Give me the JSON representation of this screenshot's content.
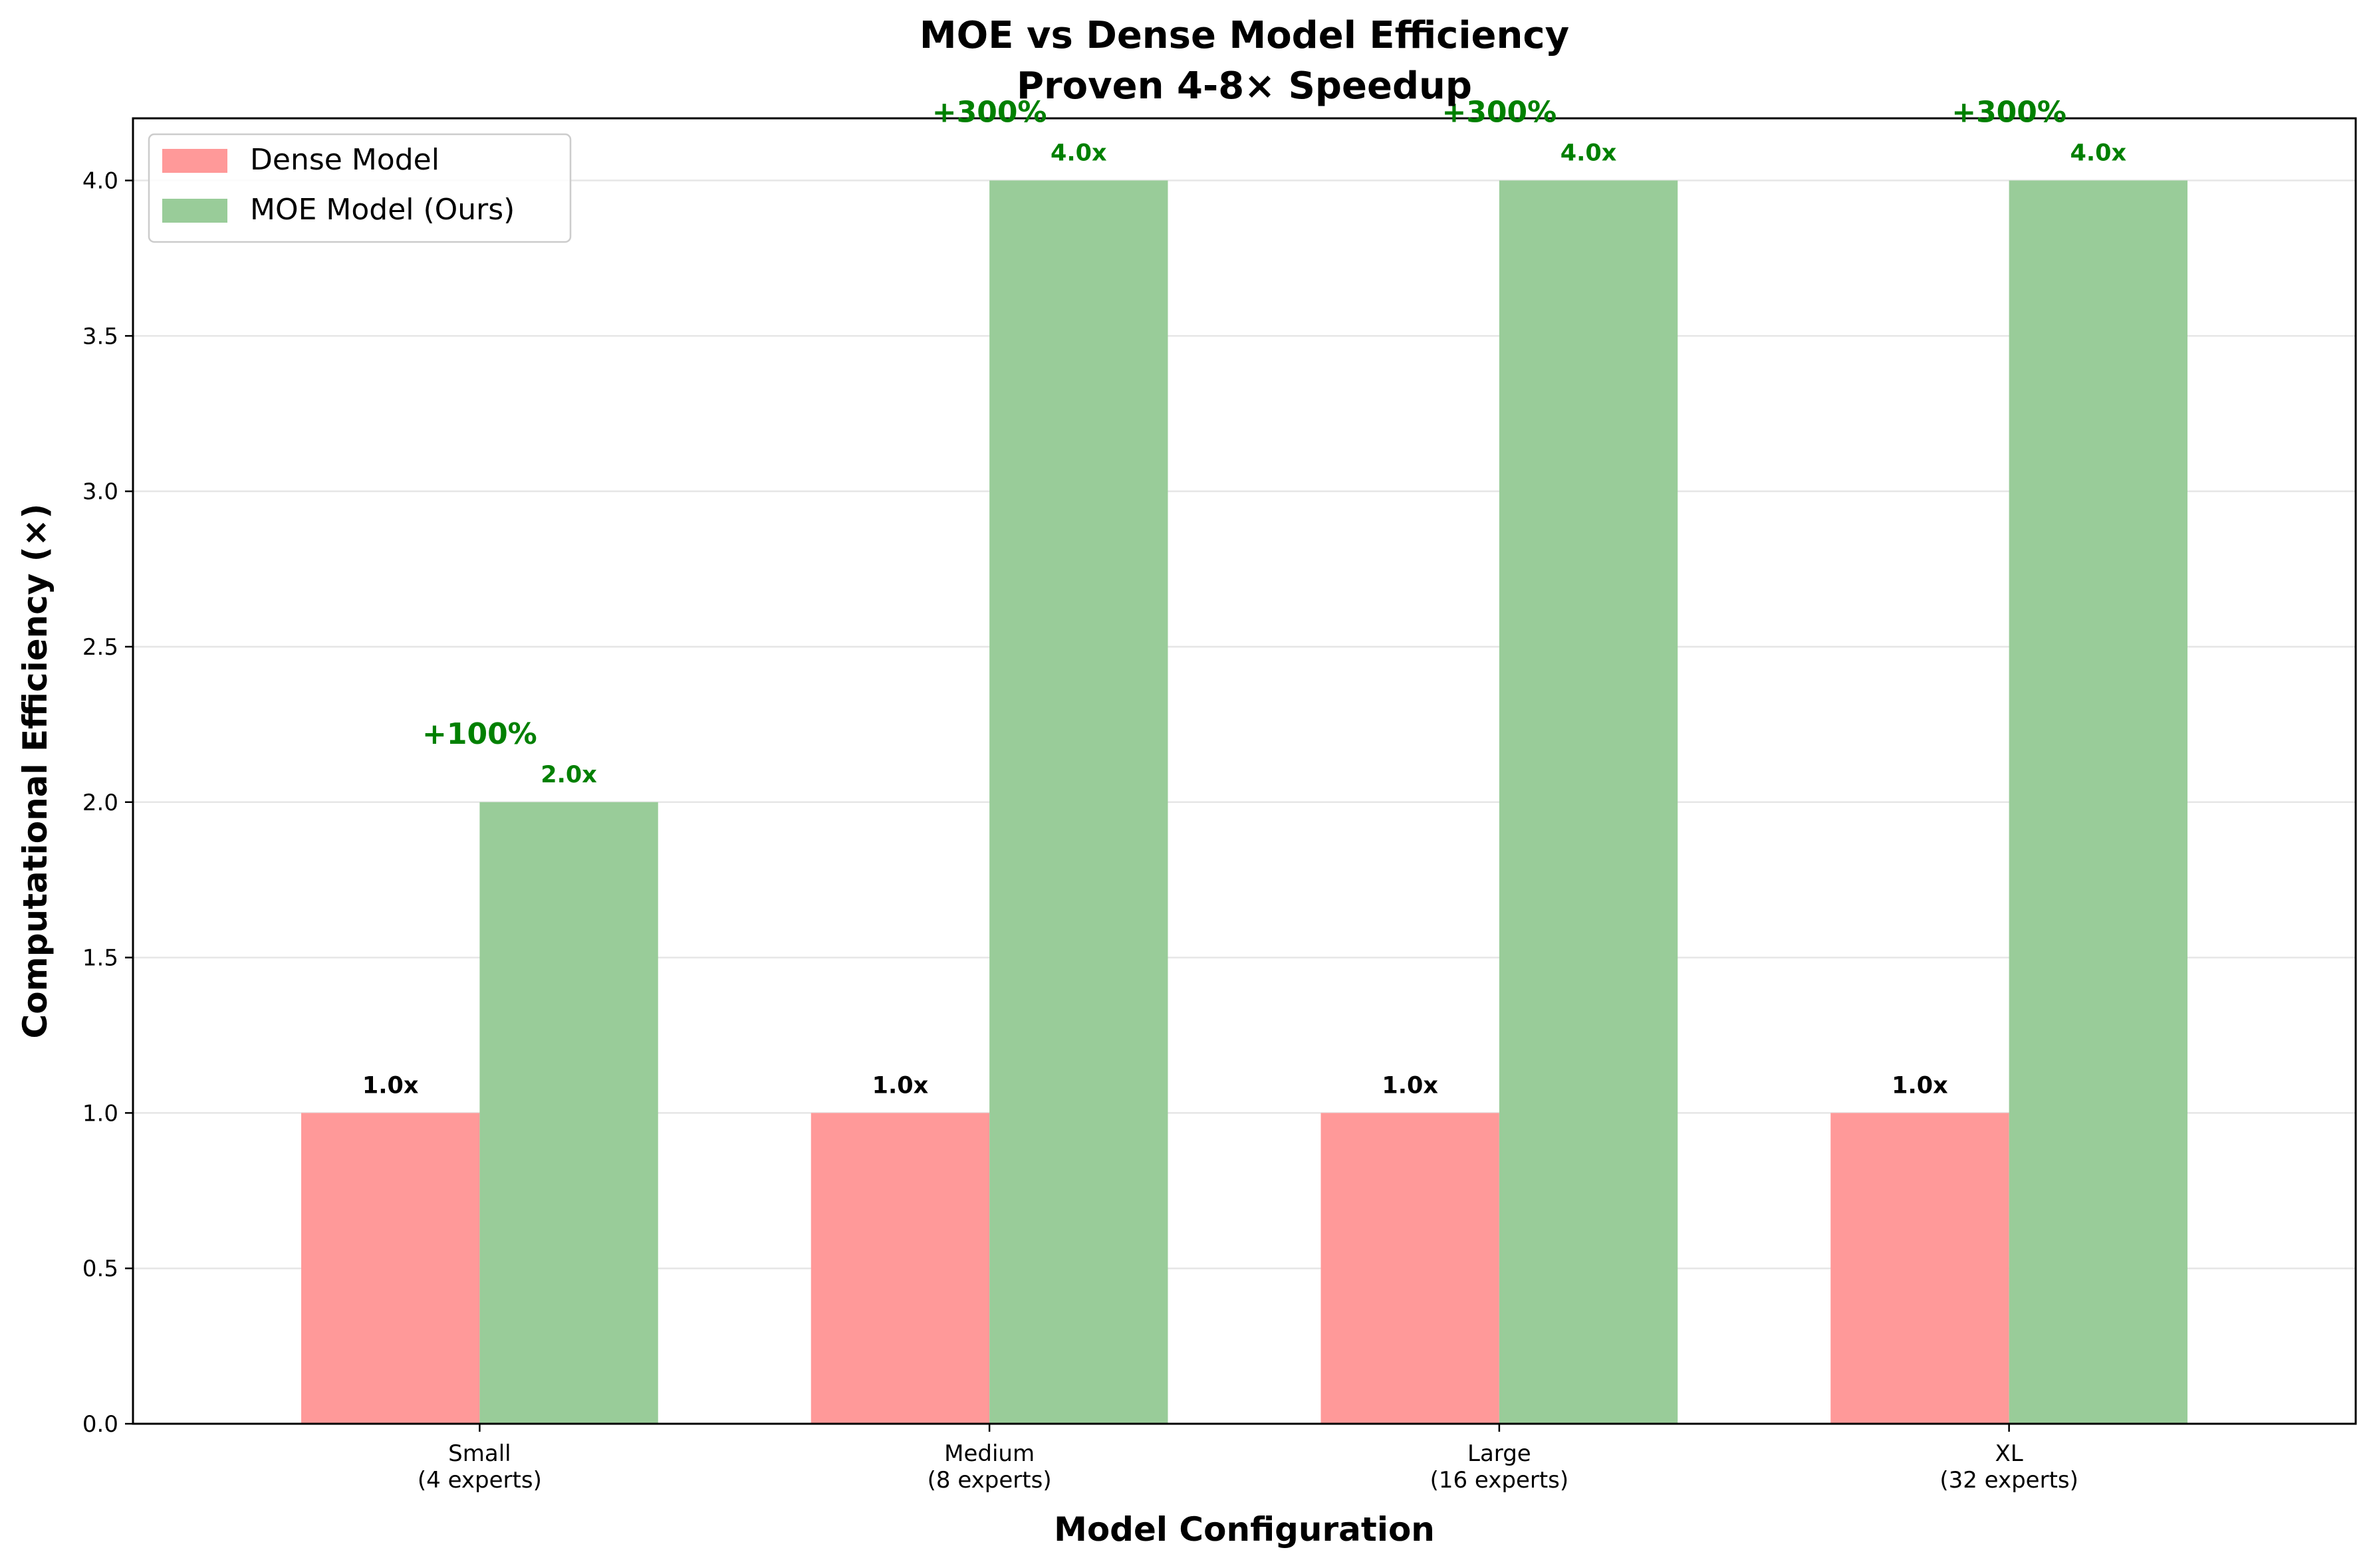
{
  "chart_data": {
    "type": "bar",
    "title": "MOE vs Dense Model Efficiency\nProven 4-8× Speedup",
    "title_lines": [
      "MOE vs Dense Model Efficiency",
      "Proven 4-8× Speedup"
    ],
    "xlabel": "Model Configuration",
    "ylabel": "Computational Efficiency (×)",
    "categories": [
      "Small\n(4 experts)",
      "Medium\n(8 experts)",
      "Large\n(16 experts)",
      "XL\n(32 experts)"
    ],
    "category_lines": [
      [
        "Small",
        "(4 experts)"
      ],
      [
        "Medium",
        "(8 experts)"
      ],
      [
        "Large",
        "(16 experts)"
      ],
      [
        "XL",
        "(32 experts)"
      ]
    ],
    "series": [
      {
        "name": "Dense Model",
        "values": [
          1.0,
          1.0,
          1.0,
          1.0
        ],
        "labels": [
          "1.0x",
          "1.0x",
          "1.0x",
          "1.0x"
        ],
        "color": "#ff9999",
        "label_color": "#000000"
      },
      {
        "name": "MOE Model (Ours)",
        "values": [
          2.0,
          4.0,
          4.0,
          4.0
        ],
        "labels": [
          "2.0x",
          "4.0x",
          "4.0x",
          "4.0x"
        ],
        "color": "#99cc99",
        "label_color": "#008000"
      }
    ],
    "improvements": [
      "+100%",
      "+300%",
      "+300%",
      "+300%"
    ],
    "improvement_color": "#008000",
    "ylim": [
      0,
      4.2
    ],
    "yticks": [
      0.0,
      0.5,
      1.0,
      1.5,
      2.0,
      2.5,
      3.0,
      3.5,
      4.0
    ],
    "ytick_labels": [
      "0.0",
      "0.5",
      "1.0",
      "1.5",
      "2.0",
      "2.5",
      "3.0",
      "3.5",
      "4.0"
    ],
    "grid": "y",
    "legend_position": "upper-left"
  }
}
